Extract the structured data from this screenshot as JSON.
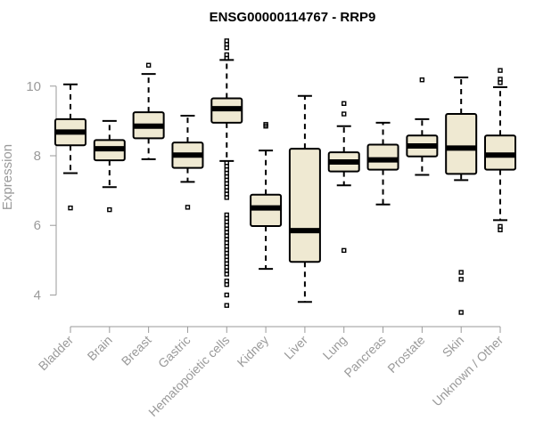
{
  "chart_data": {
    "type": "boxplot",
    "title": "ENSG00000114767 - RRP9",
    "xlabel": "",
    "ylabel": "Expression",
    "ylim": [
      3.5,
      11.4
    ],
    "yticks": [
      4,
      6,
      8,
      10
    ],
    "grid": false,
    "colors": {
      "box_fill": "#efe9d2",
      "box_stroke": "#000000",
      "axis": "#9a9a9a",
      "title": "#000000"
    },
    "categories": [
      "Bladder",
      "Brain",
      "Breast",
      "Gastric",
      "Hematopoietic cells",
      "Kidney",
      "Liver",
      "Lung",
      "Pancreas",
      "Prostate",
      "Skin",
      "Unknown / Other"
    ],
    "boxes": [
      {
        "category": "Bladder",
        "whisker_low": 7.5,
        "q1": 8.3,
        "median": 8.68,
        "q3": 9.05,
        "whisker_high": 10.05,
        "outliers": [
          6.5
        ]
      },
      {
        "category": "Brain",
        "whisker_low": 7.1,
        "q1": 7.87,
        "median": 8.2,
        "q3": 8.45,
        "whisker_high": 9.0,
        "outliers": [
          6.45
        ]
      },
      {
        "category": "Breast",
        "whisker_low": 7.9,
        "q1": 8.5,
        "median": 8.85,
        "q3": 9.25,
        "whisker_high": 10.35,
        "outliers": [
          10.6
        ]
      },
      {
        "category": "Gastric",
        "whisker_low": 7.25,
        "q1": 7.65,
        "median": 8.02,
        "q3": 8.38,
        "whisker_high": 9.15,
        "outliers": [
          6.52
        ]
      },
      {
        "category": "Hematopoietic cells",
        "whisker_low": 7.85,
        "q1": 8.95,
        "median": 9.35,
        "q3": 9.65,
        "whisker_high": 10.75,
        "outliers": [
          11.3,
          11.2,
          11.1,
          10.9,
          10.8,
          7.8,
          7.7,
          7.6,
          7.5,
          7.4,
          7.3,
          7.2,
          7.1,
          7.0,
          6.9,
          6.8,
          6.3,
          6.2,
          6.1,
          6.0,
          5.9,
          5.8,
          5.7,
          5.6,
          5.5,
          5.4,
          5.3,
          5.2,
          5.1,
          5.0,
          4.9,
          4.8,
          4.7,
          4.6,
          4.4,
          4.3,
          4.0,
          3.7
        ]
      },
      {
        "category": "Kidney",
        "whisker_low": 4.75,
        "q1": 5.98,
        "median": 6.5,
        "q3": 6.88,
        "whisker_high": 8.15,
        "outliers": [
          8.85,
          8.9
        ]
      },
      {
        "category": "Liver",
        "whisker_low": 3.8,
        "q1": 4.95,
        "median": 5.85,
        "q3": 8.2,
        "whisker_high": 9.72,
        "outliers": []
      },
      {
        "category": "Lung",
        "whisker_low": 7.15,
        "q1": 7.55,
        "median": 7.82,
        "q3": 8.1,
        "whisker_high": 8.85,
        "outliers": [
          9.2,
          9.5,
          5.28
        ]
      },
      {
        "category": "Pancreas",
        "whisker_low": 6.6,
        "q1": 7.6,
        "median": 7.88,
        "q3": 8.32,
        "whisker_high": 8.95,
        "outliers": []
      },
      {
        "category": "Prostate",
        "whisker_low": 7.45,
        "q1": 7.98,
        "median": 8.28,
        "q3": 8.58,
        "whisker_high": 9.05,
        "outliers": [
          10.18
        ]
      },
      {
        "category": "Skin",
        "whisker_low": 7.3,
        "q1": 7.48,
        "median": 8.22,
        "q3": 9.2,
        "whisker_high": 10.25,
        "outliers": [
          4.65,
          4.45,
          3.5
        ]
      },
      {
        "category": "Unknown / Other",
        "whisker_low": 6.15,
        "q1": 7.6,
        "median": 8.02,
        "q3": 8.58,
        "whisker_high": 9.97,
        "outliers": [
          10.45,
          10.2,
          10.1,
          5.97,
          5.87
        ]
      }
    ]
  }
}
